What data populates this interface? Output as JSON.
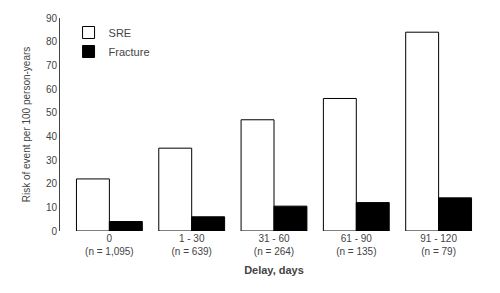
{
  "chart_data": {
    "type": "bar",
    "categories": [
      "0\n(n = 1,095)",
      "1 - 30\n(n = 639)",
      "31 - 60\n(n = 264)",
      "61 - 90\n(n = 135)",
      "91 - 120\n(n = 79)"
    ],
    "series": [
      {
        "name": "SRE",
        "color": "#ffffff",
        "values": [
          22,
          35,
          47,
          56,
          84
        ]
      },
      {
        "name": "Fracture",
        "color": "#000000",
        "values": [
          4,
          6,
          10.5,
          12,
          14
        ]
      }
    ],
    "xlabel": "Delay, days",
    "ylabel": "Risk of event per 100 person-years",
    "ylim": [
      0,
      90
    ],
    "yticks": [
      0,
      10,
      20,
      30,
      40,
      50,
      60,
      70,
      80,
      90
    ],
    "grid": false,
    "legend": "upper left"
  }
}
